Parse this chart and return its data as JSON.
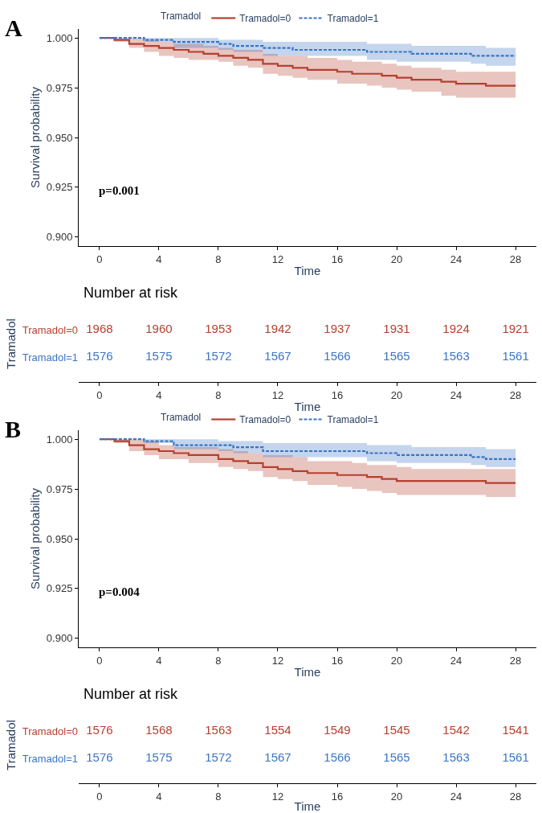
{
  "chart_data": [
    {
      "type": "step",
      "title": "A",
      "xlabel": "Time",
      "ylabel": "Survival probability",
      "legend_title": "Tramadol",
      "legend": "top",
      "annotations": [
        "p=0.001"
      ],
      "xlim": [
        -1.4,
        29.4
      ],
      "xticks": [
        0,
        4,
        8,
        12,
        16,
        20,
        24,
        28
      ],
      "ylim": [
        0.8955,
        1.0045
      ],
      "yticks": [
        {
          "value": 0.9,
          "label": "0.900"
        },
        {
          "value": 0.925,
          "label": "0.925"
        },
        {
          "value": 0.95,
          "label": "0.950"
        },
        {
          "value": 0.975,
          "label": "0.975"
        },
        {
          "value": 1.0,
          "label": "1.000"
        }
      ],
      "series": [
        {
          "name": "Tramadol=0",
          "color": "#b5402f",
          "line_style": "solid",
          "x": [
            0,
            1,
            2,
            3,
            4,
            5,
            6,
            7,
            8,
            9,
            10,
            11,
            12,
            13,
            14,
            16,
            17,
            18,
            19,
            20,
            21,
            23,
            24,
            26,
            28
          ],
          "values": [
            1.0,
            0.999,
            0.997,
            0.996,
            0.995,
            0.994,
            0.993,
            0.992,
            0.991,
            0.99,
            0.989,
            0.987,
            0.986,
            0.985,
            0.984,
            0.983,
            0.982,
            0.982,
            0.981,
            0.98,
            0.979,
            0.978,
            0.977,
            0.976,
            0.976
          ],
          "lower": [
            1.0,
            0.998,
            0.995,
            0.993,
            0.991,
            0.99,
            0.989,
            0.989,
            0.988,
            0.986,
            0.985,
            0.982,
            0.981,
            0.98,
            0.979,
            0.977,
            0.977,
            0.976,
            0.975,
            0.974,
            0.973,
            0.971,
            0.97,
            0.97,
            0.97
          ],
          "upper": [
            1.0,
            1.0,
            1.0,
            0.999,
            0.998,
            0.997,
            0.997,
            0.996,
            0.995,
            0.994,
            0.994,
            0.992,
            0.991,
            0.991,
            0.99,
            0.989,
            0.988,
            0.988,
            0.987,
            0.986,
            0.985,
            0.984,
            0.983,
            0.983,
            0.983
          ]
        },
        {
          "name": "Tramadol=1",
          "color": "#3a75c4",
          "line_style": "dashed",
          "x": [
            0,
            3,
            5,
            8,
            9,
            11,
            13,
            18,
            20,
            21,
            25,
            26,
            28
          ],
          "values": [
            1.0,
            0.999,
            0.998,
            0.997,
            0.996,
            0.995,
            0.994,
            0.993,
            0.993,
            0.992,
            0.991,
            0.991,
            0.991
          ],
          "lower": [
            1.0,
            0.998,
            0.995,
            0.994,
            0.993,
            0.991,
            0.991,
            0.989,
            0.988,
            0.988,
            0.987,
            0.986,
            0.986
          ],
          "upper": [
            1.0,
            1.0,
            1.0,
            0.999,
            0.999,
            0.998,
            0.998,
            0.997,
            0.997,
            0.996,
            0.996,
            0.995,
            0.995
          ]
        }
      ]
    },
    {
      "type": "heatmap",
      "title": "Number at risk",
      "xlabel": "Time",
      "ylabel": "Tramadol",
      "data_labels": true,
      "x": [
        0,
        4,
        8,
        12,
        16,
        20,
        24,
        28
      ],
      "xlim": [
        -1.4,
        29.4
      ],
      "xticks": [
        0,
        4,
        8,
        12,
        16,
        20,
        24,
        28
      ],
      "y_categories": [
        "Tramadol=0",
        "Tramadol=1"
      ],
      "colors": [
        "#b5402f",
        "#3a75c4"
      ],
      "cells": [
        [
          1968,
          1960,
          1953,
          1942,
          1937,
          1931,
          1924,
          1921
        ],
        [
          1576,
          1575,
          1572,
          1567,
          1566,
          1565,
          1563,
          1561
        ]
      ]
    },
    {
      "type": "step",
      "title": "B",
      "xlabel": "Time",
      "ylabel": "Survival probability",
      "legend_title": "Tramadol",
      "legend": "top",
      "annotations": [
        "p=0.004"
      ],
      "xlim": [
        -1.4,
        29.4
      ],
      "xticks": [
        0,
        4,
        8,
        12,
        16,
        20,
        24,
        28
      ],
      "ylim": [
        0.8955,
        1.0045
      ],
      "yticks": [
        {
          "value": 0.9,
          "label": "0.900"
        },
        {
          "value": 0.925,
          "label": "0.925"
        },
        {
          "value": 0.95,
          "label": "0.950"
        },
        {
          "value": 0.975,
          "label": "0.975"
        },
        {
          "value": 1.0,
          "label": "1.000"
        }
      ],
      "series": [
        {
          "name": "Tramadol=0",
          "color": "#b5402f",
          "line_style": "solid",
          "x": [
            0,
            1,
            2,
            3,
            4,
            5,
            6,
            7,
            8,
            9,
            10,
            11,
            12,
            13,
            14,
            16,
            17,
            18,
            19,
            20,
            21,
            26,
            28
          ],
          "values": [
            1.0,
            0.999,
            0.997,
            0.995,
            0.994,
            0.993,
            0.992,
            0.992,
            0.99,
            0.989,
            0.988,
            0.986,
            0.985,
            0.984,
            0.983,
            0.982,
            0.982,
            0.981,
            0.98,
            0.979,
            0.979,
            0.978,
            0.978
          ],
          "lower": [
            1.0,
            0.998,
            0.994,
            0.992,
            0.99,
            0.99,
            0.988,
            0.988,
            0.986,
            0.985,
            0.984,
            0.981,
            0.98,
            0.979,
            0.977,
            0.976,
            0.975,
            0.974,
            0.973,
            0.972,
            0.972,
            0.971,
            0.971
          ],
          "upper": [
            1.0,
            1.0,
            1.0,
            0.999,
            0.997,
            0.996,
            0.996,
            0.996,
            0.995,
            0.994,
            0.993,
            0.992,
            0.992,
            0.991,
            0.989,
            0.989,
            0.988,
            0.987,
            0.987,
            0.986,
            0.985,
            0.985,
            0.985
          ]
        },
        {
          "name": "Tramadol=1",
          "color": "#3a75c4",
          "line_style": "dashed",
          "x": [
            0,
            3,
            5,
            8,
            9,
            11,
            13,
            18,
            20,
            21,
            25,
            26,
            28
          ],
          "values": [
            1.0,
            0.999,
            0.997,
            0.997,
            0.996,
            0.994,
            0.994,
            0.993,
            0.992,
            0.992,
            0.991,
            0.99,
            0.99
          ],
          "lower": [
            1.0,
            0.998,
            0.995,
            0.994,
            0.993,
            0.991,
            0.991,
            0.989,
            0.988,
            0.988,
            0.987,
            0.986,
            0.986
          ],
          "upper": [
            1.0,
            1.0,
            1.0,
            0.999,
            0.999,
            0.998,
            0.998,
            0.997,
            0.997,
            0.996,
            0.996,
            0.995,
            0.995
          ]
        }
      ]
    },
    {
      "type": "heatmap",
      "title": "Number at risk",
      "xlabel": "Time",
      "ylabel": "Tramadol",
      "data_labels": true,
      "x": [
        0,
        4,
        8,
        12,
        16,
        20,
        24,
        28
      ],
      "xlim": [
        -1.4,
        29.4
      ],
      "xticks": [
        0,
        4,
        8,
        12,
        16,
        20,
        24,
        28
      ],
      "y_categories": [
        "Tramadol=0",
        "Tramadol=1"
      ],
      "colors": [
        "#b5402f",
        "#3a75c4"
      ],
      "cells": [
        [
          1576,
          1568,
          1563,
          1554,
          1549,
          1545,
          1542,
          1541
        ],
        [
          1576,
          1575,
          1572,
          1567,
          1566,
          1565,
          1563,
          1561
        ]
      ]
    }
  ]
}
